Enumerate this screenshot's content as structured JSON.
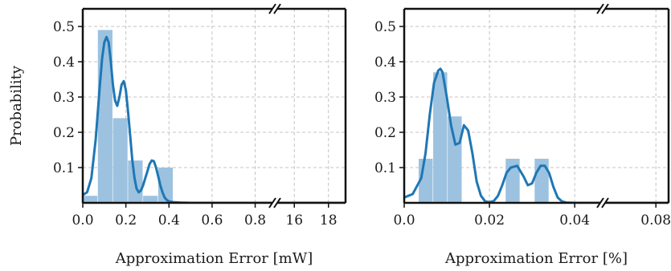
{
  "chart_data": [
    {
      "type": "bar",
      "title": "",
      "xlabel": "Approximation Error [mW]",
      "ylabel": "Probability",
      "ylim": [
        0,
        0.55
      ],
      "grid": true,
      "x_axis_break": true,
      "x_ticks": [
        "0.0",
        "0.2",
        "0.4",
        "0.6",
        "0.8",
        "16",
        "18"
      ],
      "y_ticks": [
        "0.1",
        "0.2",
        "0.3",
        "0.4",
        "0.5"
      ],
      "segments": [
        {
          "xlim": [
            0.0,
            0.88
          ],
          "tick_values": [
            0.0,
            0.2,
            0.4,
            0.6,
            0.8
          ]
        },
        {
          "xlim": [
            15.0,
            19.0
          ],
          "tick_values": [
            16,
            18
          ]
        }
      ],
      "histogram": {
        "bin_edges": [
          0.0,
          0.07,
          0.14,
          0.21,
          0.28,
          0.35,
          0.42
        ],
        "values": [
          0.02,
          0.49,
          0.24,
          0.12,
          0.02,
          0.1
        ]
      },
      "kde": {
        "x": [
          0.0,
          0.02,
          0.04,
          0.06,
          0.08,
          0.09,
          0.1,
          0.11,
          0.12,
          0.13,
          0.14,
          0.15,
          0.16,
          0.17,
          0.18,
          0.19,
          0.2,
          0.21,
          0.22,
          0.23,
          0.24,
          0.25,
          0.26,
          0.27,
          0.28,
          0.29,
          0.3,
          0.31,
          0.32,
          0.33,
          0.34,
          0.35,
          0.36,
          0.37,
          0.38,
          0.39,
          0.4,
          0.42,
          0.45,
          0.5,
          0.6,
          0.7,
          0.8,
          0.88
        ],
        "y": [
          0.022,
          0.03,
          0.07,
          0.18,
          0.34,
          0.41,
          0.455,
          0.47,
          0.455,
          0.4,
          0.335,
          0.29,
          0.275,
          0.3,
          0.335,
          0.345,
          0.32,
          0.26,
          0.19,
          0.12,
          0.07,
          0.04,
          0.03,
          0.035,
          0.05,
          0.07,
          0.09,
          0.11,
          0.12,
          0.118,
          0.1,
          0.075,
          0.05,
          0.03,
          0.015,
          0.008,
          0.004,
          0.002,
          0.001,
          0.0,
          0.0,
          0.0,
          0.0,
          0.0
        ]
      },
      "kde_tail": {
        "x": [
          15.0,
          19.0
        ],
        "y": [
          0.0,
          0.0
        ]
      }
    },
    {
      "type": "bar",
      "title": "",
      "xlabel": "Approximation Error [%]",
      "ylabel": "",
      "ylim": [
        0,
        0.55
      ],
      "grid": true,
      "x_axis_break": true,
      "x_ticks": [
        "0.0",
        "0.02",
        "0.04",
        "0.08"
      ],
      "y_ticks": [
        "0.1",
        "0.2",
        "0.3",
        "0.4",
        "0.5"
      ],
      "segments": [
        {
          "xlim": [
            0.0,
            0.046
          ],
          "tick_values": [
            0.0,
            0.02,
            0.04
          ]
        },
        {
          "xlim": [
            0.064,
            0.084
          ],
          "tick_values": [
            0.08
          ]
        }
      ],
      "histogram": {
        "bin_edges": [
          0.0,
          0.0034,
          0.0068,
          0.0102,
          0.0136,
          0.017,
          0.0204,
          0.0238,
          0.0272,
          0.0306,
          0.034
        ],
        "values": [
          0.0,
          0.125,
          0.37,
          0.245,
          0.0,
          0.0,
          0.0,
          0.125,
          0.0,
          0.125
        ]
      },
      "kde": {
        "x": [
          0.0,
          0.002,
          0.004,
          0.005,
          0.006,
          0.007,
          0.008,
          0.0085,
          0.009,
          0.01,
          0.011,
          0.012,
          0.013,
          0.014,
          0.015,
          0.016,
          0.017,
          0.018,
          0.019,
          0.02,
          0.021,
          0.022,
          0.023,
          0.024,
          0.025,
          0.0265,
          0.028,
          0.029,
          0.03,
          0.031,
          0.032,
          0.033,
          0.034,
          0.035,
          0.036,
          0.037,
          0.038,
          0.04,
          0.042,
          0.046
        ],
        "y": [
          0.015,
          0.025,
          0.07,
          0.14,
          0.25,
          0.34,
          0.375,
          0.38,
          0.37,
          0.3,
          0.22,
          0.165,
          0.17,
          0.22,
          0.205,
          0.14,
          0.06,
          0.02,
          0.004,
          0.002,
          0.005,
          0.02,
          0.05,
          0.085,
          0.1,
          0.105,
          0.075,
          0.05,
          0.055,
          0.085,
          0.105,
          0.105,
          0.085,
          0.045,
          0.015,
          0.004,
          0.001,
          0.0,
          0.0,
          0.0
        ]
      },
      "kde_tail": {
        "x": [
          0.064,
          0.084
        ],
        "y": [
          0.0,
          0.0
        ]
      }
    }
  ]
}
